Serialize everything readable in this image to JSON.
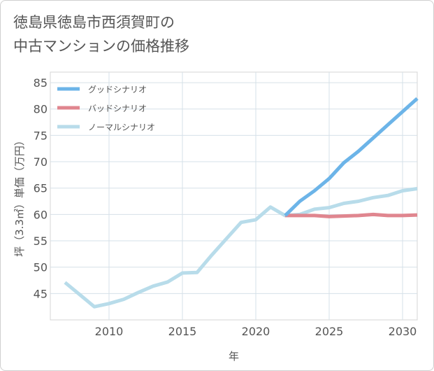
{
  "title_lines": [
    "徳島県徳島市西須賀町の",
    "中古マンションの価格推移"
  ],
  "chart_data": {
    "type": "line",
    "title": "徳島県徳島市西須賀町の中古マンションの価格推移",
    "xlabel": "年",
    "ylabel": "坪（3.3㎡）単価（万円）",
    "xlim": [
      2006,
      2031
    ],
    "ylim": [
      40,
      87
    ],
    "xticks": [
      2010,
      2015,
      2020,
      2025,
      2030
    ],
    "yticks": [
      45,
      50,
      55,
      60,
      65,
      70,
      75,
      80,
      85
    ],
    "grid": true,
    "legend_position": "top-left",
    "series": [
      {
        "name": "グッドシナリオ",
        "color": "#6cb4e8",
        "x": [
          2022,
          2023,
          2024,
          2025,
          2026,
          2027,
          2028,
          2029,
          2030,
          2031
        ],
        "y": [
          59.8,
          62.5,
          64.5,
          66.8,
          69.8,
          72.0,
          74.5,
          77.0,
          79.5,
          82.0
        ]
      },
      {
        "name": "バッドシナリオ",
        "color": "#e0868f",
        "x": [
          2022,
          2023,
          2024,
          2025,
          2026,
          2027,
          2028,
          2029,
          2030,
          2031
        ],
        "y": [
          59.8,
          59.8,
          59.8,
          59.6,
          59.7,
          59.8,
          60.0,
          59.8,
          59.8,
          59.9
        ]
      },
      {
        "name": "ノーマルシナリオ",
        "color": "#b8dcea",
        "x": [
          2007,
          2008,
          2009,
          2010,
          2011,
          2012,
          2013,
          2014,
          2015,
          2016,
          2017,
          2018,
          2019,
          2020,
          2021,
          2022,
          2023,
          2024,
          2025,
          2026,
          2027,
          2028,
          2029,
          2030,
          2031
        ],
        "y": [
          47.1,
          44.8,
          42.5,
          43.1,
          43.9,
          45.2,
          46.4,
          47.2,
          48.9,
          49.0,
          52.3,
          55.4,
          58.5,
          59.0,
          61.4,
          59.8,
          60.0,
          61.0,
          61.3,
          62.1,
          62.5,
          63.2,
          63.6,
          64.5,
          64.9
        ]
      }
    ]
  }
}
